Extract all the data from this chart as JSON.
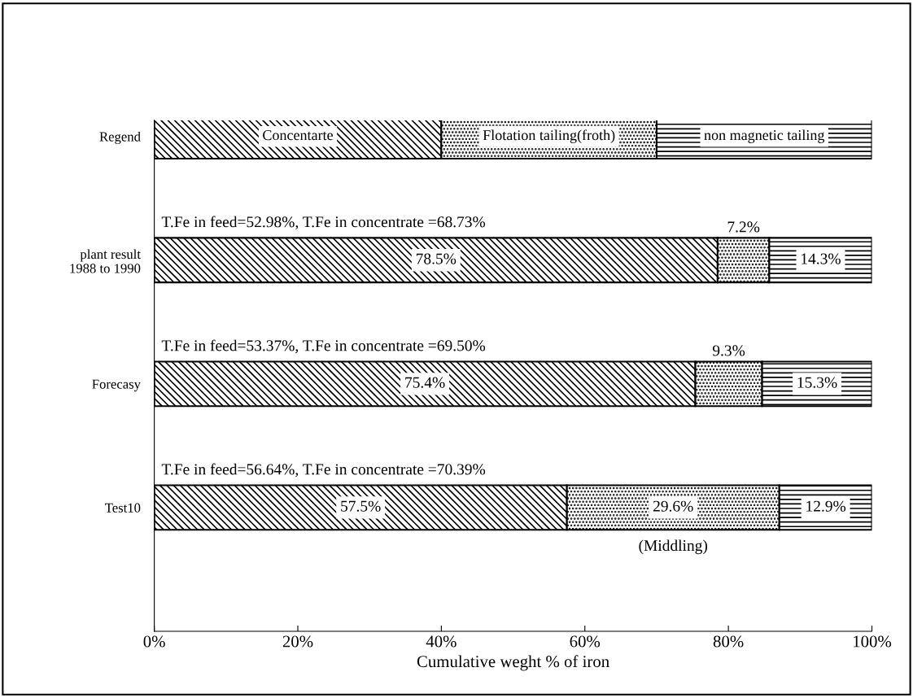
{
  "chart_data": {
    "type": "bar",
    "orientation": "horizontal",
    "stacked": true,
    "categories": [
      "Regend",
      "plant result\n1988 to 1990",
      "Forecasy",
      "Test10"
    ],
    "series": [
      {
        "name": "Concentarte",
        "color": "#000000",
        "values": [
          40,
          78.5,
          75.4,
          57.5
        ],
        "value_labels": [
          null,
          "78.5%",
          "75.4%",
          "57.5%"
        ]
      },
      {
        "name": "Flotation tailing(froth)",
        "color": "#000000",
        "values": [
          30,
          7.2,
          9.3,
          29.6
        ],
        "value_labels": [
          null,
          "7.2%",
          "9.3%",
          "29.6%"
        ]
      },
      {
        "name": "non magnetic tailing",
        "color": "#000000",
        "values": [
          30,
          14.3,
          15.3,
          12.9
        ],
        "value_labels": [
          null,
          "14.3%",
          "15.3%",
          "12.9%"
        ]
      }
    ],
    "xlim": [
      0,
      100
    ],
    "xticks": [
      {
        "value": 0,
        "label": "0%"
      },
      {
        "value": 20,
        "label": "20%"
      },
      {
        "value": 40,
        "label": "40%"
      },
      {
        "value": 60,
        "label": "60%"
      },
      {
        "value": 80,
        "label": "80%"
      },
      {
        "value": 100,
        "label": "100%"
      }
    ],
    "xlabel": "Cumulative weght % of iron",
    "annotations": [
      "T.Fe in feed=52.98%, T.Fe in concentrate =68.73%",
      "T.Fe in feed=53.37%, T.Fe in concentrate =69.50%",
      "T.Fe in feed=56.64%, T.Fe in concentrate =70.39%",
      "(Middling)"
    ],
    "grid": false,
    "legend": false
  }
}
